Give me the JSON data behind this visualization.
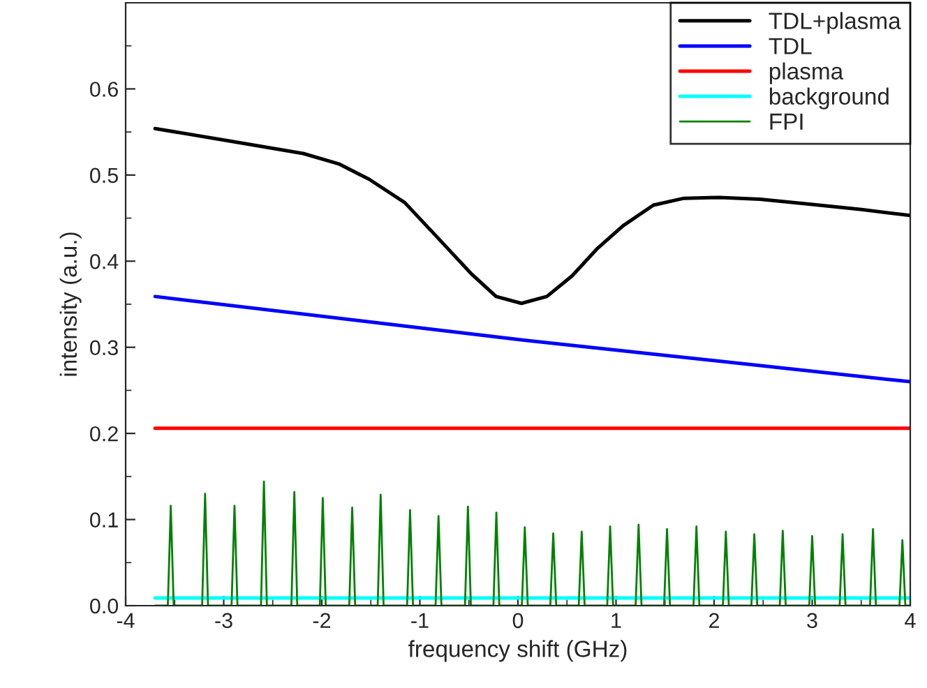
{
  "chart_data": {
    "type": "line",
    "xlabel": "frequency shift (GHz)",
    "ylabel": "intensity (a.u.)",
    "xlim": [
      -4,
      4
    ],
    "ylim": [
      0,
      0.7
    ],
    "xticks": [
      -4,
      -3,
      -2,
      -1,
      0,
      1,
      2,
      3,
      4
    ],
    "yticks": [
      {
        "value": 0.0,
        "label": "0.0"
      },
      {
        "value": 0.1,
        "label": "0.1"
      },
      {
        "value": 0.2,
        "label": "0.2"
      },
      {
        "value": 0.3,
        "label": "0.3"
      },
      {
        "value": 0.4,
        "label": "0.4"
      },
      {
        "value": 0.5,
        "label": "0.5"
      },
      {
        "value": 0.6,
        "label": "0.6"
      }
    ],
    "grid": false,
    "legend": "top right",
    "marker": "none",
    "line_style": "solid",
    "series": [
      {
        "name": "TDL+plasma",
        "color": "#000000",
        "x": [
          -3.7,
          -2.965,
          -2.189,
          -1.827,
          -1.516,
          -1.154,
          -0.792,
          -0.481,
          -0.223,
          0.036,
          0.295,
          0.553,
          0.812,
          1.071,
          1.381,
          1.692,
          2.054,
          2.468,
          2.985,
          3.503,
          4.0
        ],
        "values": [
          0.554,
          0.54,
          0.525,
          0.513,
          0.495,
          0.468,
          0.424,
          0.386,
          0.359,
          0.351,
          0.359,
          0.383,
          0.415,
          0.441,
          0.465,
          0.473,
          0.474,
          0.472,
          0.466,
          0.46,
          0.453
        ]
      },
      {
        "name": "TDL",
        "color": "#0000ff",
        "x": [
          -3.7,
          0,
          4.0
        ],
        "values": [
          0.359,
          0.309,
          0.26
        ]
      },
      {
        "name": "plasma",
        "color": "#ff0000",
        "x": [
          -3.7,
          4.0
        ],
        "values": [
          0.206,
          0.206
        ]
      },
      {
        "name": "background",
        "color": "#00ffff",
        "x": [
          -3.7,
          4.0
        ],
        "values": [
          0.009,
          0.009
        ]
      },
      {
        "name": "FPI",
        "color": "#008000",
        "x": [
          -3.7,
          -3.57,
          -3.54,
          -3.51,
          -3.22,
          -3.19,
          -3.16,
          -2.92,
          -2.89,
          -2.86,
          -2.62,
          -2.59,
          -2.56,
          -2.31,
          -2.28,
          -2.25,
          -2.02,
          -1.99,
          -1.96,
          -1.72,
          -1.69,
          -1.66,
          -1.43,
          -1.4,
          -1.37,
          -1.13,
          -1.1,
          -1.07,
          -0.84,
          -0.81,
          -0.78,
          -0.54,
          -0.51,
          -0.48,
          -0.25,
          -0.22,
          -0.19,
          0.04,
          0.07,
          0.1,
          0.33,
          0.36,
          0.39,
          0.62,
          0.65,
          0.68,
          0.91,
          0.94,
          0.97,
          1.2,
          1.23,
          1.26,
          1.49,
          1.52,
          1.55,
          1.79,
          1.82,
          1.85,
          2.09,
          2.12,
          2.15,
          2.38,
          2.41,
          2.44,
          2.67,
          2.7,
          2.73,
          2.97,
          3.0,
          3.03,
          3.28,
          3.31,
          3.34,
          3.59,
          3.62,
          3.65,
          3.89,
          3.92,
          3.95,
          4.0
        ],
        "values": [
          0,
          0,
          0.116,
          0,
          0,
          0.13,
          0,
          0,
          0.116,
          0,
          0,
          0.144,
          0,
          0,
          0.132,
          0,
          0,
          0.125,
          0,
          0,
          0.114,
          0,
          0,
          0.129,
          0,
          0,
          0.111,
          0,
          0,
          0.104,
          0,
          0,
          0.115,
          0,
          0,
          0.108,
          0,
          0,
          0.091,
          0,
          0,
          0.084,
          0,
          0,
          0.086,
          0,
          0,
          0.092,
          0,
          0,
          0.094,
          0,
          0,
          0.089,
          0,
          0,
          0.092,
          0,
          0,
          0.086,
          0,
          0,
          0.083,
          0,
          0,
          0.087,
          0,
          0,
          0.081,
          0,
          0,
          0.083,
          0,
          0,
          0.089,
          0,
          0,
          0.076,
          0,
          0
        ]
      }
    ]
  }
}
